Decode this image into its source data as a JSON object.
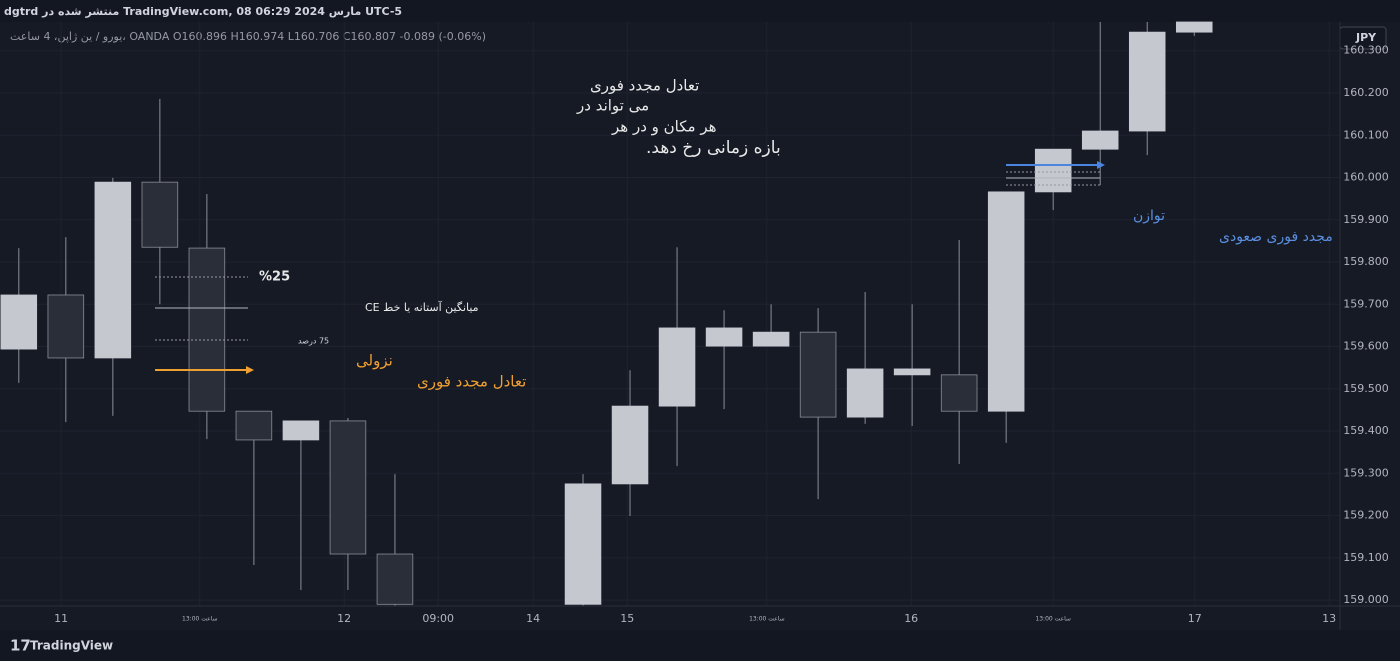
{
  "header": {
    "title": "dgtrd منتشر شده در TradingView.com, 08 مارس 2024 06:29 UTC-5",
    "legend": "یورو / ین ژاپن، 4 ساعت، OANDA O160.896 H160.974 L160.706 C160.807 -0.089 (-0.06%)",
    "currency_button": "JPY"
  },
  "chart_data": {
    "type": "candlestick",
    "x": [
      0,
      1,
      2,
      3,
      4,
      5,
      6,
      7,
      8,
      12,
      13,
      14,
      15,
      16,
      17,
      18,
      19,
      20,
      21,
      22,
      23,
      24,
      25
    ],
    "open": [
      159.594,
      159.722,
      159.573,
      159.989,
      159.833,
      159.447,
      159.379,
      159.424,
      159.109,
      158.99,
      159.275,
      159.459,
      159.601,
      159.601,
      159.634,
      159.433,
      159.533,
      159.533,
      159.447,
      159.966,
      160.067,
      160.11,
      160.344
    ],
    "high": [
      159.833,
      159.859,
      159.999,
      160.186,
      159.961,
      159.447,
      159.424,
      159.431,
      159.298,
      159.298,
      159.544,
      159.835,
      159.686,
      159.7,
      159.691,
      159.729,
      159.7,
      159.852,
      159.966,
      160.067,
      160.368,
      160.368,
      160.368
    ],
    "low": [
      159.514,
      159.421,
      159.436,
      159.7,
      159.381,
      159.083,
      159.024,
      159.024,
      158.986,
      158.986,
      159.199,
      159.317,
      159.452,
      159.601,
      159.239,
      159.417,
      159.412,
      159.322,
      159.372,
      159.923,
      159.982,
      160.053,
      160.335
    ],
    "close": [
      159.722,
      159.573,
      159.989,
      159.835,
      159.447,
      159.379,
      159.424,
      159.109,
      158.99,
      159.275,
      159.459,
      159.644,
      159.644,
      159.634,
      159.433,
      159.547,
      159.547,
      159.447,
      159.966,
      160.067,
      160.11,
      160.344,
      160.368
    ],
    "up_color": "#c6c8d0",
    "down_color": "#2a2e39",
    "wick_color": "#8a8d96",
    "xlim": [
      -0.4,
      28.1
    ],
    "ylim": [
      158.986,
      160.368
    ],
    "xticks": [
      {
        "value": 0.9,
        "label": "11"
      },
      {
        "value": 3.85,
        "label": "13:00 ساعت"
      },
      {
        "value": 6.92,
        "label": "12"
      },
      {
        "value": 8.92,
        "label": "09:00"
      },
      {
        "value": 10.94,
        "label": "14"
      },
      {
        "value": 12.94,
        "label": "15"
      },
      {
        "value": 15.91,
        "label": "13:00 ساعت"
      },
      {
        "value": 18.98,
        "label": "16"
      },
      {
        "value": 22.0,
        "label": "13:00 ساعت"
      },
      {
        "value": 25.01,
        "label": "17"
      },
      {
        "value": 27.87,
        "label": "13"
      }
    ],
    "yticks": [
      {
        "value": 159.0,
        "label": "159.000"
      },
      {
        "value": 159.1,
        "label": "159.100"
      },
      {
        "value": 159.2,
        "label": "159.200"
      },
      {
        "value": 159.3,
        "label": "159.300"
      },
      {
        "value": 159.4,
        "label": "159.400"
      },
      {
        "value": 159.5,
        "label": "159.500"
      },
      {
        "value": 159.6,
        "label": "159.600"
      },
      {
        "value": 159.7,
        "label": "159.700"
      },
      {
        "value": 159.8,
        "label": "159.800"
      },
      {
        "value": 159.9,
        "label": "159.900"
      },
      {
        "value": 160.0,
        "label": "160.000"
      },
      {
        "value": 160.1,
        "label": "160.100"
      },
      {
        "value": 160.2,
        "label": "160.200"
      },
      {
        "value": 160.3,
        "label": "160.300"
      }
    ],
    "grid": true,
    "annotations": {
      "note": [
        "تعادل مجدد فوری",
        "می تواند در",
        "هر مکان و در هر",
        "بازه زمانی رخ دهد."
      ],
      "pct25": "%25",
      "ce_line": "میانگین آستانه یا خط CE",
      "pct75": "75 درصد",
      "bearish": [
        "نزولی",
        "تعادل مجدد فوری"
      ],
      "bullish": [
        "توازن",
        "مجدد فوری صعودی"
      ]
    }
  },
  "footer": {
    "brand": "TradingView"
  }
}
